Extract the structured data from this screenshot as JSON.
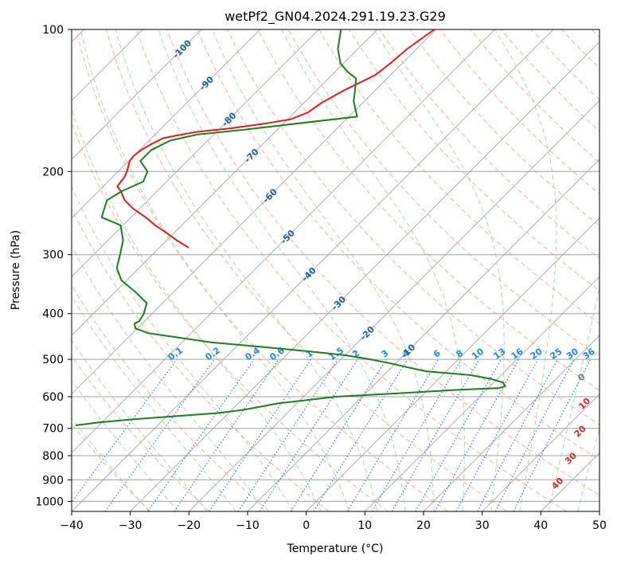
{
  "chart_data": {
    "type": "line",
    "title": "wetPf2_GN04.2024.291.19.23.G29",
    "xlabel": "Temperature (°C)",
    "ylabel": "Pressure (hPa)",
    "xlim": [
      -40,
      50
    ],
    "ylim": [
      1050,
      100
    ],
    "y_scale": "log",
    "x_ticks": [
      -40,
      -30,
      -20,
      -10,
      0,
      10,
      20,
      30,
      40,
      50
    ],
    "y_ticks": [
      100,
      200,
      300,
      400,
      500,
      600,
      700,
      800,
      900,
      1000
    ],
    "grid": true,
    "skew": true,
    "background_lines": {
      "isotherms": "gray solid",
      "dry_adiabats": "salmon dashed",
      "moist_adiabats": "green dashed",
      "mixing_ratio": "blue dotted",
      "colors": {
        "isotherm": "#b0b0b0",
        "dry_adiabat": "#f4a582",
        "moist_adiabat": "#9fd29f",
        "mixing_ratio": "#1f77d4"
      }
    },
    "isotherm_labels": [
      {
        "text": "-100",
        "pressure": 110
      },
      {
        "text": "-90",
        "pressure": 130
      },
      {
        "text": "-80",
        "pressure": 155
      },
      {
        "text": "-70",
        "pressure": 185
      },
      {
        "text": "-60",
        "pressure": 225
      },
      {
        "text": "-50",
        "pressure": 275
      },
      {
        "text": "-40",
        "pressure": 330
      },
      {
        "text": "-30",
        "pressure": 380
      },
      {
        "text": "-20",
        "pressure": 440
      },
      {
        "text": "-10",
        "pressure": 480
      }
    ],
    "isotherm_label_color": "#1f5fa0",
    "mixing_ratio_labels": [
      "0.1",
      "0.2",
      "0.4",
      "0.6",
      "1",
      "1.5",
      "2",
      "3",
      "4",
      "6",
      "8",
      "10",
      "13",
      "16",
      "20",
      "25",
      "30",
      "36"
    ],
    "mixing_ratio_values": [
      0.1,
      0.2,
      0.4,
      0.6,
      1,
      1.5,
      2,
      3,
      4,
      6,
      8,
      10,
      13,
      16,
      20,
      25,
      30,
      36
    ],
    "mixing_ratio_label_pressure": 500,
    "mixing_ratio_label_color": "#1e88e5",
    "theta_labels": [
      {
        "text": "0",
        "temperature": 24,
        "pressure": 545,
        "color": "#808080"
      },
      {
        "text": "10",
        "temperature": 29,
        "pressure": 620,
        "color": "#d62728"
      },
      {
        "text": "20",
        "temperature": 33,
        "pressure": 710,
        "color": "#d62728"
      },
      {
        "text": "30",
        "temperature": 36,
        "pressure": 810,
        "color": "#d62728"
      },
      {
        "text": "40",
        "temperature": 38,
        "pressure": 915,
        "color": "#d62728"
      }
    ],
    "series": [
      {
        "color": "#e31a1c",
        "pressure": [
          100,
          110,
          118,
          125,
          135,
          143,
          150,
          155,
          158,
          162,
          165,
          168,
          170,
          175,
          180,
          185,
          190,
          200,
          205,
          210,
          215,
          220,
          230,
          240,
          250,
          260,
          270,
          280,
          290
        ],
        "temperature": [
          -60.3,
          -61.6,
          -62.0,
          -62.6,
          -65.4,
          -67.0,
          -67.7,
          -69.5,
          -72.8,
          -78.2,
          -83.5,
          -86.4,
          -88.0,
          -89.0,
          -89.7,
          -90.0,
          -89.8,
          -88.5,
          -88.0,
          -87.8,
          -87.6,
          -86.2,
          -84.0,
          -81.0,
          -77.5,
          -74.5,
          -71.2,
          -68.2,
          -65.0
        ]
      },
      {
        "color": "#1e7d1e",
        "pressure": [
          100,
          110,
          118,
          123,
          127,
          133,
          142,
          153,
          163,
          167,
          172,
          180,
          190,
          200,
          210,
          220,
          230,
          240,
          250,
          260,
          280,
          300,
          320,
          340,
          360,
          380,
          400,
          415,
          420,
          430,
          440,
          460,
          470,
          480,
          490,
          500,
          510,
          520,
          530,
          540,
          550,
          560,
          570,
          575,
          580,
          590,
          600,
          620,
          640,
          650,
          660,
          670,
          680,
          690
        ],
        "temperature": [
          -76.2,
          -73.4,
          -70.5,
          -67.8,
          -65.3,
          -63.8,
          -61.8,
          -58.6,
          -75.6,
          -82.8,
          -86.4,
          -88.0,
          -88.0,
          -85.0,
          -84.0,
          -86.0,
          -87.0,
          -86.0,
          -85.0,
          -80.4,
          -77.4,
          -75.5,
          -73.8,
          -70.9,
          -66.5,
          -62.7,
          -61.4,
          -60.9,
          -61.3,
          -60.3,
          -57.3,
          -45.2,
          -36.0,
          -27.5,
          -20.0,
          -15.0,
          -10.8,
          -7.2,
          -3.4,
          4.8,
          8.9,
          11.6,
          12.6,
          11.9,
          5.4,
          -4.5,
          -14.5,
          -23.2,
          -28.1,
          -32.0,
          -38.6,
          -45.2,
          -50.5,
          -54.0
        ]
      }
    ]
  }
}
